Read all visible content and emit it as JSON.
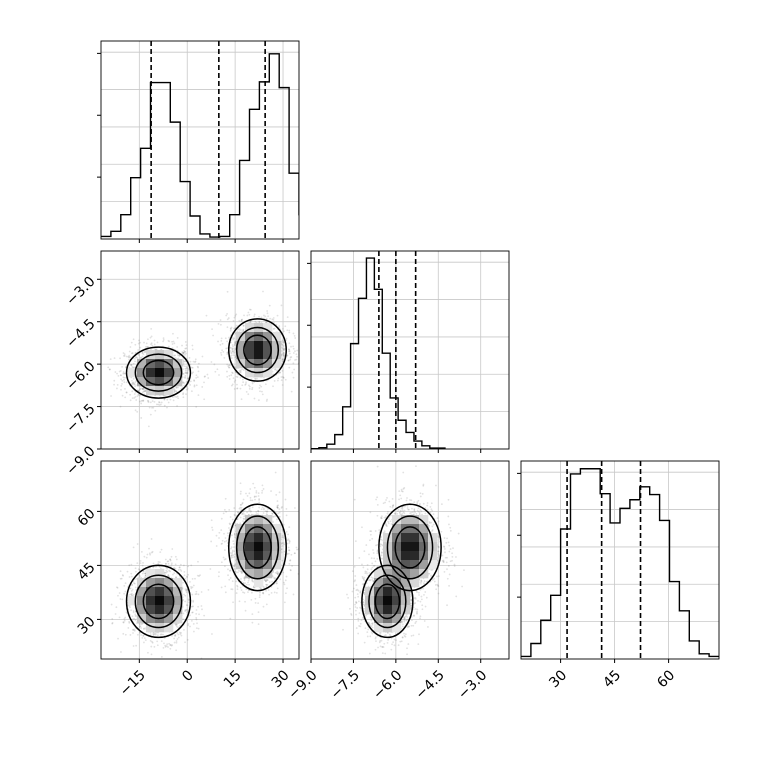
{
  "chart_data": {
    "type": "corner",
    "params": [
      {
        "ticks": [
          -15,
          0,
          15,
          30
        ],
        "tick_labels": [
          "−15",
          "0",
          "15",
          "30"
        ],
        "range": [
          -27,
          35
        ]
      },
      {
        "ticks": [
          -9.0,
          -7.5,
          -6.0,
          -4.5,
          -3.0
        ],
        "tick_labels": [
          "−9.0",
          "−7.5",
          "−6.0",
          "−4.5",
          "−3.0"
        ],
        "range": [
          -9.0,
          -2.0
        ]
      },
      {
        "ticks": [
          30,
          45,
          60
        ],
        "tick_labels": [
          "30",
          "45",
          "60"
        ],
        "range": [
          19,
          74
        ]
      }
    ],
    "histograms": [
      {
        "param": 0,
        "bins_start": -27,
        "bin_width": 3.1,
        "counts": [
          0.4,
          1.2,
          3.8,
          9.6,
          14.2,
          24.5,
          24.5,
          18.3,
          9.0,
          3.6,
          0.8,
          0.3,
          0.4,
          3.8,
          12.3,
          20.3,
          24.6,
          29.0,
          23.7,
          10.3,
          3.8,
          0.5
        ],
        "quantile_lines": [
          -11.3,
          9.9,
          24.4
        ],
        "ymax": 31
      },
      {
        "param": 1,
        "bins_start": -9.0,
        "bin_width": 0.28,
        "counts": [
          0.1,
          0.4,
          1.5,
          4.5,
          13.2,
          33.0,
          47.2,
          59.8,
          50.0,
          30.0,
          16.0,
          9.0,
          5.2,
          2.5,
          1.0,
          0.3,
          0.3
        ],
        "quantile_lines": [
          -6.6,
          -6.0,
          -5.3
        ],
        "ymax": 62
      },
      {
        "param": 2,
        "bins_start": 19,
        "bin_width": 2.75,
        "counts": [
          0.3,
          1.8,
          4.5,
          7.4,
          15.1,
          21.5,
          22.1,
          22.1,
          19.2,
          15.8,
          17.5,
          18.5,
          20.0,
          19.1,
          16.1,
          9.0,
          5.6,
          2.1,
          0.6,
          0.3
        ],
        "quantile_lines": [
          31.8,
          41.4,
          52.2
        ],
        "ymax": 23
      }
    ],
    "modes": [
      {
        "p0": -9,
        "p1": -6.3,
        "p2": 35,
        "s0": 5,
        "s1": 0.45,
        "s2": 5,
        "w": 1.0
      },
      {
        "p0": 22,
        "p1": -5.5,
        "p2": 50,
        "s0": 4.5,
        "s1": 0.55,
        "s2": 6,
        "w": 1.0
      }
    ],
    "contour_levels": [
      1.0,
      1.6,
      2.2
    ]
  }
}
